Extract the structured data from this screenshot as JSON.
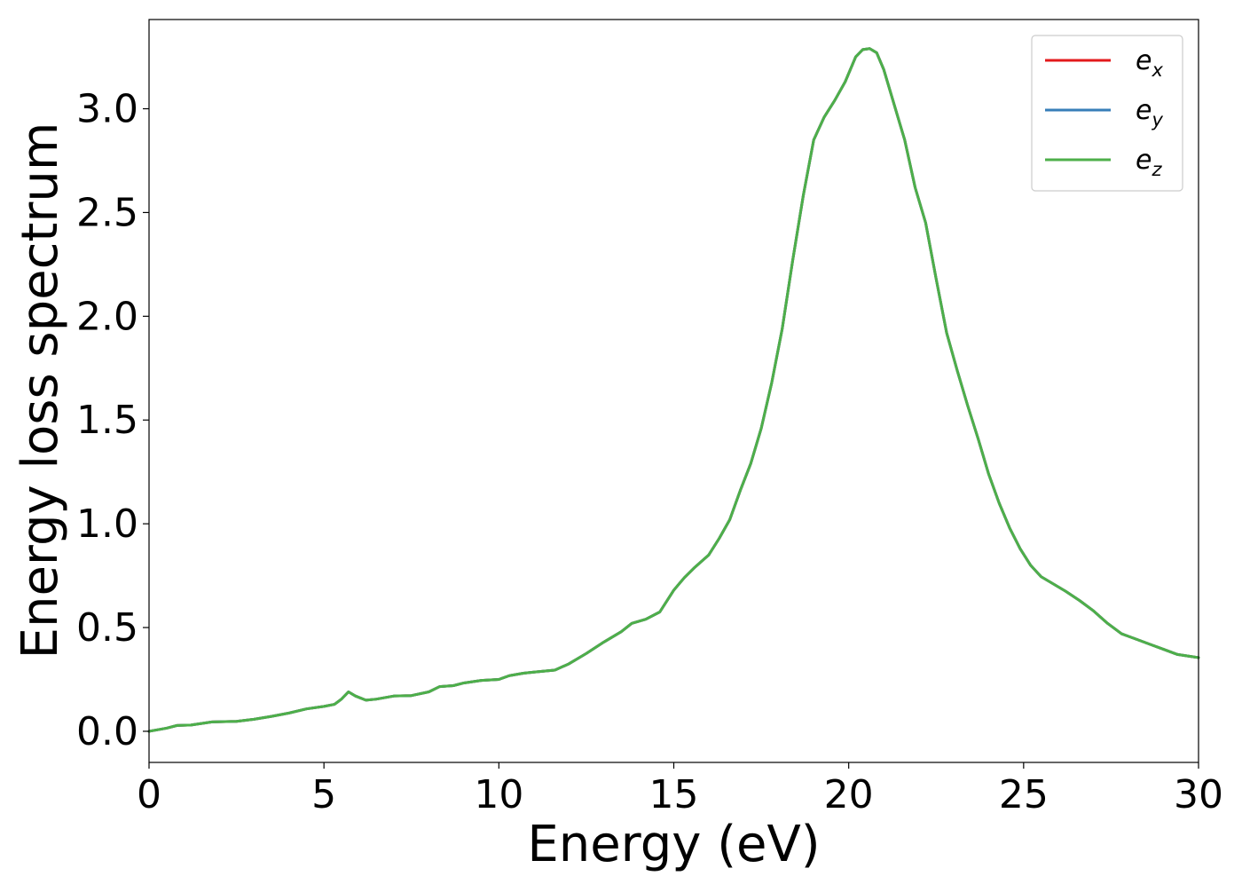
{
  "chart_data": {
    "type": "line",
    "title": "",
    "xlabel": "Energy (eV)",
    "ylabel": "Energy loss spectrum",
    "xlim": [
      0,
      30
    ],
    "ylim": [
      -0.15,
      3.43
    ],
    "xticks": [
      0,
      5,
      10,
      15,
      20,
      25,
      30
    ],
    "xtick_labels": [
      "0",
      "5",
      "10",
      "15",
      "20",
      "25",
      "30"
    ],
    "yticks": [
      0.0,
      0.5,
      1.0,
      1.5,
      2.0,
      2.5,
      3.0
    ],
    "ytick_labels": [
      "0.0",
      "0.5",
      "1.0",
      "1.5",
      "2.0",
      "2.5",
      "3.0"
    ],
    "grid": false,
    "legend_position": "top-right",
    "x": [
      0,
      0.5,
      0.8,
      1.2,
      1.8,
      2.5,
      3.0,
      3.5,
      4.0,
      4.5,
      5.0,
      5.3,
      5.5,
      5.7,
      5.9,
      6.2,
      6.5,
      7.0,
      7.5,
      8.0,
      8.3,
      8.7,
      9.0,
      9.5,
      10.0,
      10.3,
      10.7,
      11.0,
      11.6,
      12.0,
      12.5,
      13.0,
      13.5,
      13.8,
      14.2,
      14.6,
      15.0,
      15.3,
      15.6,
      16.0,
      16.3,
      16.6,
      16.9,
      17.2,
      17.5,
      17.8,
      18.1,
      18.4,
      18.7,
      19.0,
      19.3,
      19.6,
      19.9,
      20.2,
      20.4,
      20.6,
      20.8,
      21.0,
      21.3,
      21.6,
      21.9,
      22.2,
      22.5,
      22.8,
      23.1,
      23.4,
      23.7,
      24.0,
      24.3,
      24.6,
      24.9,
      25.2,
      25.5,
      25.8,
      26.2,
      26.6,
      27.0,
      27.4,
      27.8,
      28.2,
      28.6,
      29.0,
      29.4,
      29.8,
      30.0
    ],
    "series": [
      {
        "name": "e_x",
        "label_base": "e",
        "label_sub": "x",
        "color": "#e31a1c",
        "values": [
          0.0,
          0.015,
          0.028,
          0.03,
          0.045,
          0.048,
          0.058,
          0.072,
          0.088,
          0.108,
          0.12,
          0.13,
          0.155,
          0.19,
          0.17,
          0.15,
          0.155,
          0.17,
          0.172,
          0.19,
          0.215,
          0.22,
          0.233,
          0.245,
          0.25,
          0.268,
          0.28,
          0.285,
          0.295,
          0.325,
          0.375,
          0.43,
          0.48,
          0.52,
          0.54,
          0.575,
          0.68,
          0.74,
          0.79,
          0.85,
          0.93,
          1.02,
          1.16,
          1.29,
          1.46,
          1.68,
          1.94,
          2.27,
          2.58,
          2.85,
          2.96,
          3.04,
          3.13,
          3.25,
          3.285,
          3.29,
          3.27,
          3.19,
          3.02,
          2.85,
          2.62,
          2.45,
          2.18,
          1.92,
          1.74,
          1.57,
          1.41,
          1.24,
          1.1,
          0.98,
          0.88,
          0.8,
          0.745,
          0.715,
          0.675,
          0.63,
          0.58,
          0.52,
          0.47,
          0.445,
          0.42,
          0.395,
          0.37,
          0.36,
          0.355
        ]
      },
      {
        "name": "e_y",
        "label_base": "e",
        "label_sub": "y",
        "color": "#377eb8",
        "values": [
          0.0,
          0.015,
          0.028,
          0.03,
          0.045,
          0.048,
          0.058,
          0.072,
          0.088,
          0.108,
          0.12,
          0.13,
          0.155,
          0.19,
          0.17,
          0.15,
          0.155,
          0.17,
          0.172,
          0.19,
          0.215,
          0.22,
          0.233,
          0.245,
          0.25,
          0.268,
          0.28,
          0.285,
          0.295,
          0.325,
          0.375,
          0.43,
          0.48,
          0.52,
          0.54,
          0.575,
          0.68,
          0.74,
          0.79,
          0.85,
          0.93,
          1.02,
          1.16,
          1.29,
          1.46,
          1.68,
          1.94,
          2.27,
          2.58,
          2.85,
          2.96,
          3.04,
          3.13,
          3.25,
          3.285,
          3.29,
          3.27,
          3.19,
          3.02,
          2.85,
          2.62,
          2.45,
          2.18,
          1.92,
          1.74,
          1.57,
          1.41,
          1.24,
          1.1,
          0.98,
          0.88,
          0.8,
          0.745,
          0.715,
          0.675,
          0.63,
          0.58,
          0.52,
          0.47,
          0.445,
          0.42,
          0.395,
          0.37,
          0.36,
          0.355
        ]
      },
      {
        "name": "e_z",
        "label_base": "e",
        "label_sub": "z",
        "color": "#4daf4a",
        "values": [
          0.0,
          0.015,
          0.028,
          0.03,
          0.045,
          0.048,
          0.058,
          0.072,
          0.088,
          0.108,
          0.12,
          0.13,
          0.155,
          0.19,
          0.17,
          0.15,
          0.155,
          0.17,
          0.172,
          0.19,
          0.215,
          0.22,
          0.233,
          0.245,
          0.25,
          0.268,
          0.28,
          0.285,
          0.295,
          0.325,
          0.375,
          0.43,
          0.48,
          0.52,
          0.54,
          0.575,
          0.68,
          0.74,
          0.79,
          0.85,
          0.93,
          1.02,
          1.16,
          1.29,
          1.46,
          1.68,
          1.94,
          2.27,
          2.58,
          2.85,
          2.96,
          3.04,
          3.13,
          3.25,
          3.285,
          3.29,
          3.27,
          3.19,
          3.02,
          2.85,
          2.62,
          2.45,
          2.18,
          1.92,
          1.74,
          1.57,
          1.41,
          1.24,
          1.1,
          0.98,
          0.88,
          0.8,
          0.745,
          0.715,
          0.675,
          0.63,
          0.58,
          0.52,
          0.47,
          0.445,
          0.42,
          0.395,
          0.37,
          0.36,
          0.355
        ]
      }
    ]
  }
}
